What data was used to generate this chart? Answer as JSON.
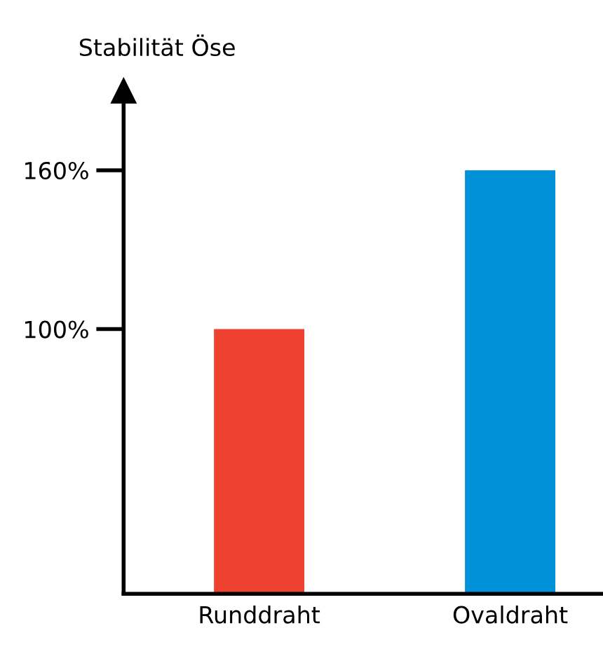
{
  "chart_data": {
    "type": "bar",
    "ylabel": "Stabilität Öse",
    "categories": [
      "Runddraht",
      "Ovaldraht"
    ],
    "values": [
      100,
      160
    ],
    "colors": [
      "#ee4130",
      "#0091d9"
    ],
    "ylim": [
      0,
      190
    ],
    "yticks": [
      {
        "value": 100,
        "label": "100%"
      },
      {
        "value": 160,
        "label": "160%"
      }
    ],
    "grid": false,
    "legend": false
  }
}
